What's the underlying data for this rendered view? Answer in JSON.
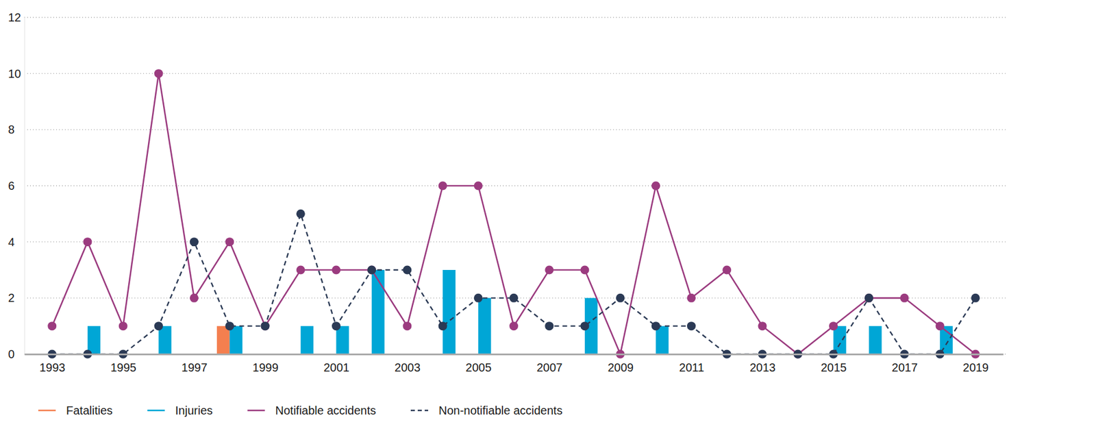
{
  "chart_data": {
    "type": "bar",
    "categories": [
      "1993",
      null,
      "1995",
      null,
      "1997",
      null,
      "1999",
      null,
      "2001",
      null,
      "2003",
      null,
      "2005",
      null,
      "2007",
      null,
      "2009",
      null,
      "2011",
      null,
      "2013",
      null,
      "2015",
      null,
      "2017",
      null,
      "2019"
    ],
    "ylim": [
      0,
      12
    ],
    "yticks": [
      0,
      2,
      4,
      6,
      8,
      10,
      12
    ],
    "grid": true,
    "legend": "bottom",
    "series": [
      {
        "name": "Fatalities",
        "type": "bar",
        "color": "#f47f4f",
        "values": [
          0,
          0,
          0,
          0,
          0,
          1,
          0,
          0,
          0,
          0,
          0,
          0,
          0,
          0,
          0,
          0,
          0,
          0,
          0,
          0,
          0,
          0,
          0,
          0,
          0,
          0,
          0
        ]
      },
      {
        "name": "Injuries",
        "type": "bar",
        "color": "#00a6d6",
        "values": [
          0,
          1,
          0,
          1,
          0,
          1,
          0,
          1,
          1,
          3,
          0,
          3,
          2,
          0,
          0,
          2,
          0,
          1,
          0,
          0,
          0,
          0,
          1,
          1,
          0,
          1,
          0
        ]
      },
      {
        "name": "Notifiable accidents",
        "type": "line",
        "color": "#9b3b7f",
        "marker": "circle",
        "line_style": "solid",
        "values": [
          1,
          4,
          1,
          10,
          2,
          4,
          1,
          3,
          3,
          3,
          1,
          6,
          6,
          1,
          3,
          3,
          0,
          6,
          2,
          3,
          1,
          0,
          1,
          2,
          2,
          1,
          0
        ]
      },
      {
        "name": "Non-notifiable accidents",
        "type": "line",
        "color": "#2b3a55",
        "marker": "circle",
        "line_style": "dashed",
        "values": [
          0,
          0,
          0,
          1,
          4,
          1,
          1,
          5,
          1,
          3,
          3,
          1,
          2,
          2,
          1,
          1,
          2,
          1,
          1,
          0,
          0,
          0,
          0,
          2,
          0,
          0,
          2
        ]
      }
    ]
  }
}
